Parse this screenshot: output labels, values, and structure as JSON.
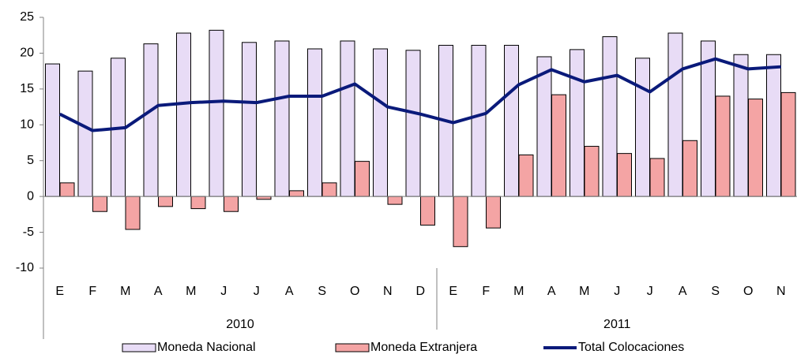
{
  "chart_data": {
    "type": "bar_line",
    "category_groups": [
      {
        "label": "2010",
        "categories": [
          "E",
          "F",
          "M",
          "A",
          "M",
          "J",
          "J",
          "A",
          "S",
          "O",
          "N",
          "D"
        ]
      },
      {
        "label": "2011",
        "categories": [
          "E",
          "F",
          "M",
          "A",
          "M",
          "J",
          "J",
          "A",
          "S",
          "O",
          "N"
        ]
      }
    ],
    "series": [
      {
        "name": "Moneda Nacional",
        "kind": "bar",
        "color": "#e8dcf6",
        "values": [
          18.5,
          17.5,
          19.3,
          21.3,
          22.8,
          23.2,
          21.5,
          21.7,
          20.6,
          21.7,
          20.6,
          20.4,
          21.1,
          21.1,
          21.1,
          19.5,
          20.5,
          22.3,
          19.3,
          22.8,
          21.7,
          19.8,
          19.8
        ]
      },
      {
        "name": "Moneda Extranjera",
        "kind": "bar",
        "color": "#f4a4a4",
        "values": [
          1.9,
          -2.1,
          -4.6,
          -1.4,
          -1.7,
          -2.1,
          -0.4,
          0.8,
          1.9,
          4.9,
          -1.1,
          -4.0,
          -7.0,
          -4.4,
          5.8,
          14.2,
          7.0,
          6.0,
          5.3,
          7.8,
          14.0,
          13.6,
          14.5
        ]
      },
      {
        "name": "Total Colocaciones",
        "kind": "line",
        "color": "#0a1a7a",
        "values": [
          11.5,
          9.2,
          9.6,
          12.7,
          13.1,
          13.3,
          13.1,
          14.0,
          14.0,
          15.7,
          12.5,
          11.5,
          10.3,
          11.6,
          15.6,
          17.7,
          16.0,
          16.9,
          14.6,
          17.8,
          19.2,
          17.8,
          18.1
        ]
      }
    ],
    "ylim": [
      -10,
      25
    ],
    "yticks": [
      -10,
      -5,
      0,
      5,
      10,
      15,
      20,
      25
    ],
    "grid": false,
    "legend": "bottom"
  }
}
